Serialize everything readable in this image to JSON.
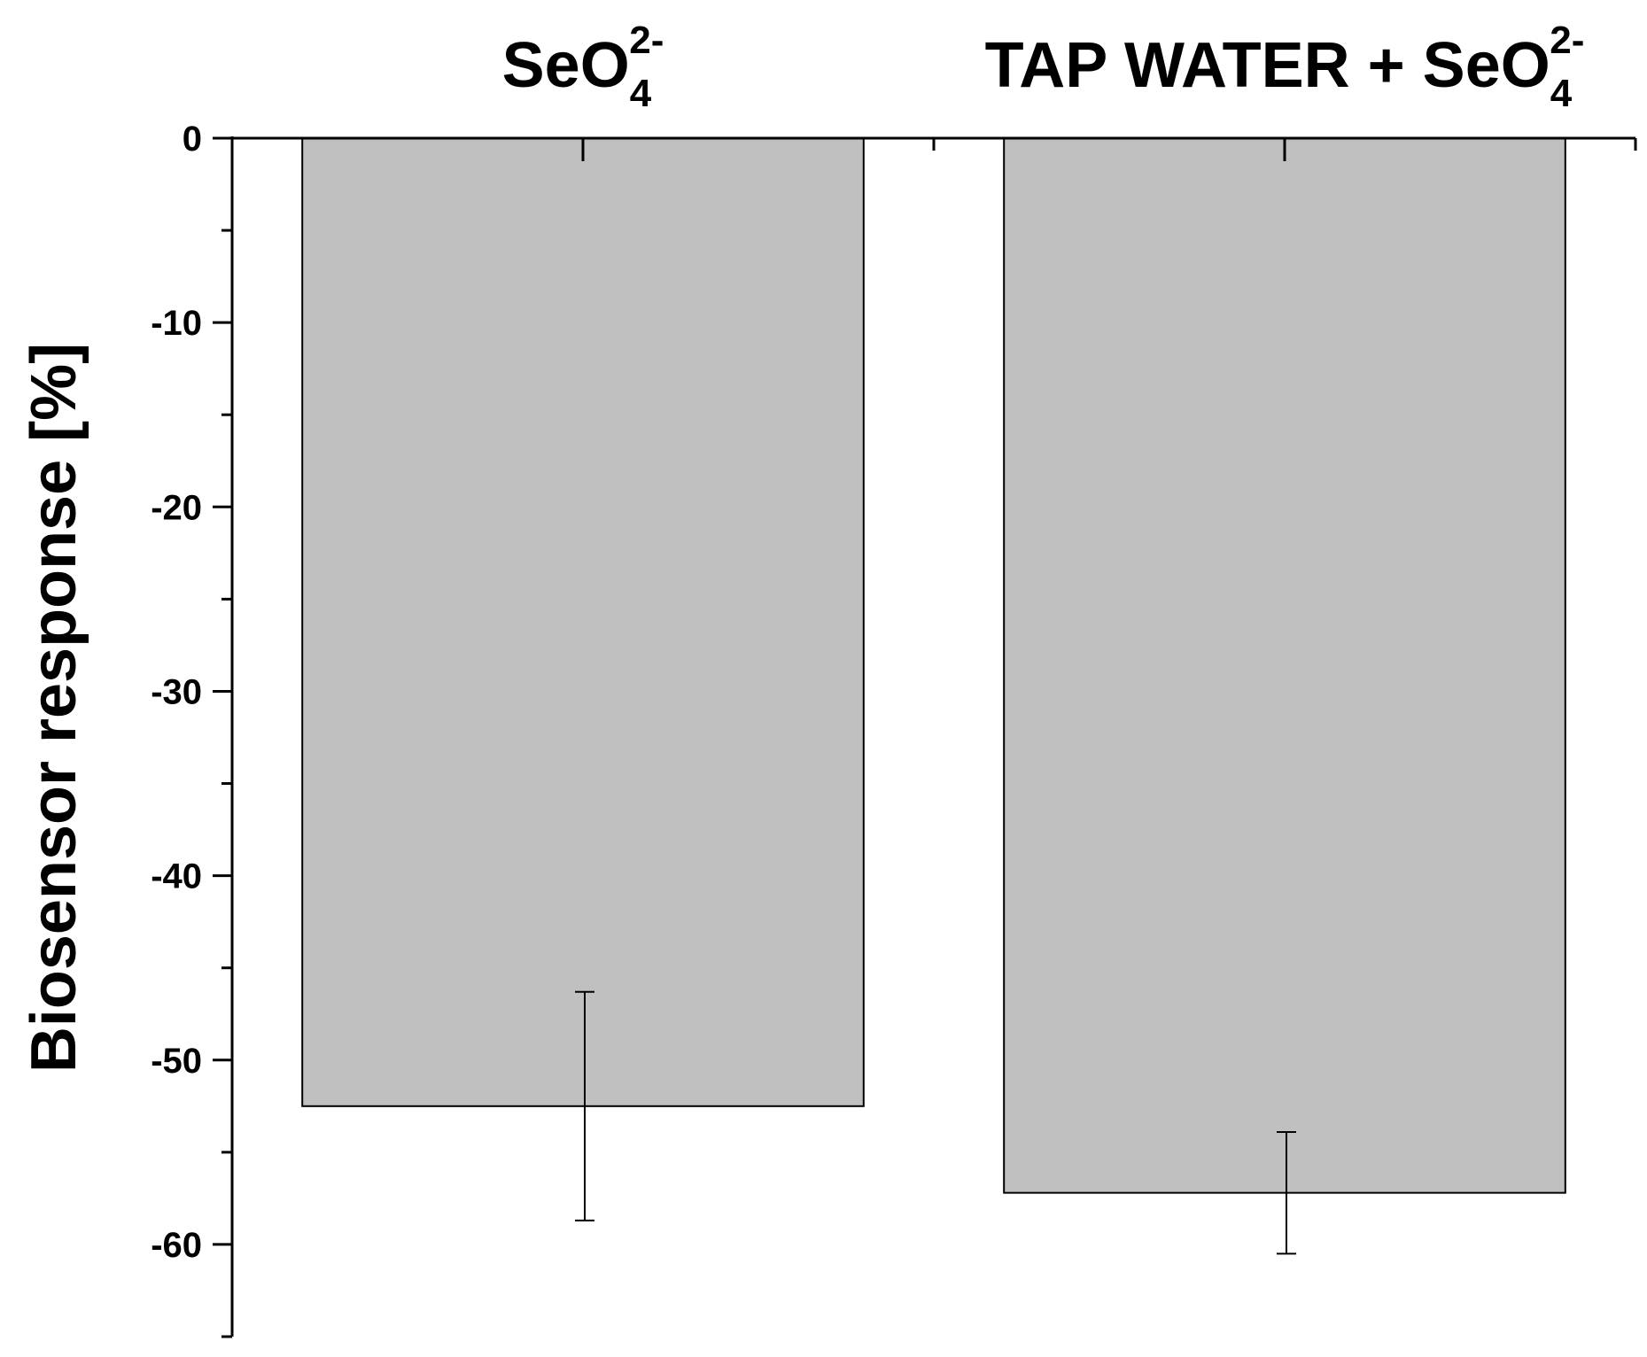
{
  "chart_data": {
    "type": "bar",
    "categories": [
      {
        "main": "SeO",
        "subscript": "4",
        "superscript": "2-"
      },
      {
        "main": "TAP WATER + SeO",
        "subscript": "4",
        "superscript": "2-"
      }
    ],
    "values": [
      -52.5,
      -57.2
    ],
    "error_low": [
      -58.7,
      -60.5
    ],
    "error_high": [
      -46.3,
      -53.9
    ],
    "ylabel": "Biosensor response [%]",
    "xlabel": "",
    "title": "",
    "ylim": [
      -65,
      0
    ],
    "yticks": [
      0,
      -10,
      -20,
      -30,
      -40,
      -50,
      -60
    ],
    "yticklabels": [
      "0",
      "-10",
      "-20",
      "-30",
      "-40",
      "-50",
      "-60"
    ],
    "grid": false,
    "bar_color": "#c0c0c0",
    "edge_color": "#000000"
  }
}
